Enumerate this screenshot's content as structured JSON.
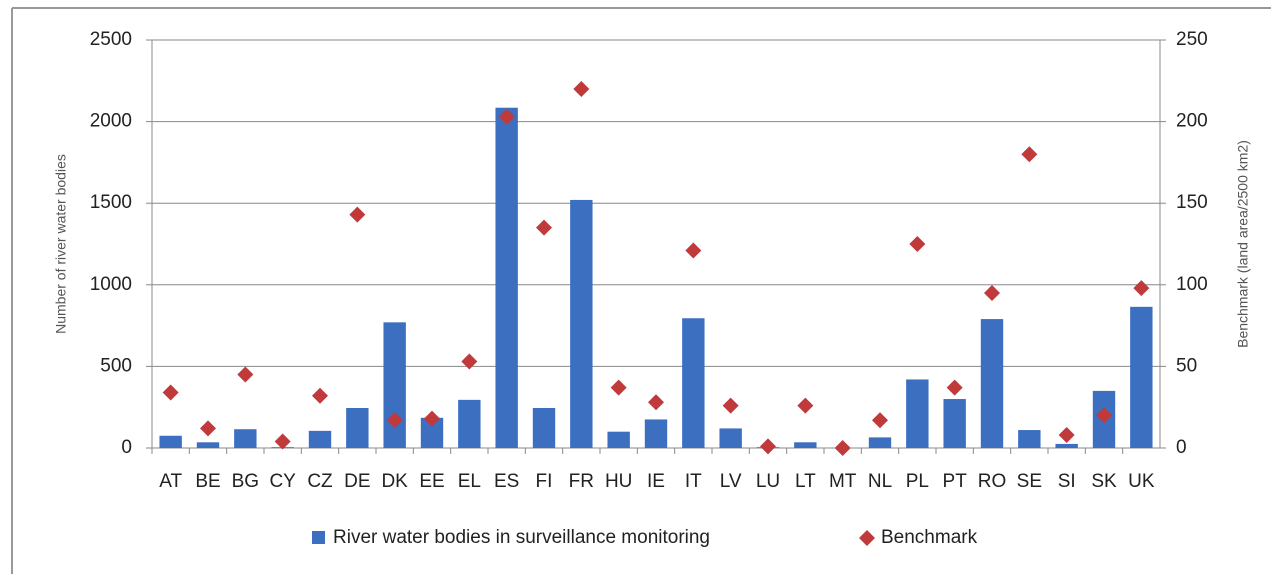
{
  "chart_data": {
    "type": "bar",
    "categories": [
      "AT",
      "BE",
      "BG",
      "CY",
      "CZ",
      "DE",
      "DK",
      "EE",
      "EL",
      "ES",
      "FI",
      "FR",
      "HU",
      "IE",
      "IT",
      "LV",
      "LU",
      "LT",
      "MT",
      "NL",
      "PL",
      "PT",
      "RO",
      "SE",
      "SI",
      "SK",
      "UK"
    ],
    "series": [
      {
        "name": "River water bodies in surveillance monitoring",
        "color": "#3c6fc0",
        "type": "bar",
        "values": [
          75,
          35,
          115,
          5,
          105,
          245,
          770,
          185,
          295,
          2085,
          245,
          1520,
          100,
          175,
          795,
          120,
          5,
          35,
          0,
          65,
          420,
          300,
          790,
          110,
          25,
          350,
          865
        ]
      },
      {
        "name": "Benchmark",
        "color": "#c0393b",
        "type": "scatter",
        "axis": "y2",
        "values": [
          34,
          12,
          45,
          4,
          32,
          143,
          17,
          18,
          53,
          203,
          135,
          220,
          37,
          28,
          121,
          26,
          1,
          26,
          0,
          17,
          125,
          37,
          95,
          180,
          8,
          20,
          98
        ]
      }
    ],
    "ylabel": "Number of river water bodies",
    "y2label": "Benchmark (land area/2500 km2)",
    "ylim": [
      0,
      2500
    ],
    "yticks": [
      0,
      500,
      1000,
      1500,
      2000,
      2500
    ],
    "y2lim": [
      0,
      250
    ],
    "y2ticks": [
      0,
      50,
      100,
      150,
      200,
      250
    ],
    "grid": true,
    "legend": "bottom"
  }
}
